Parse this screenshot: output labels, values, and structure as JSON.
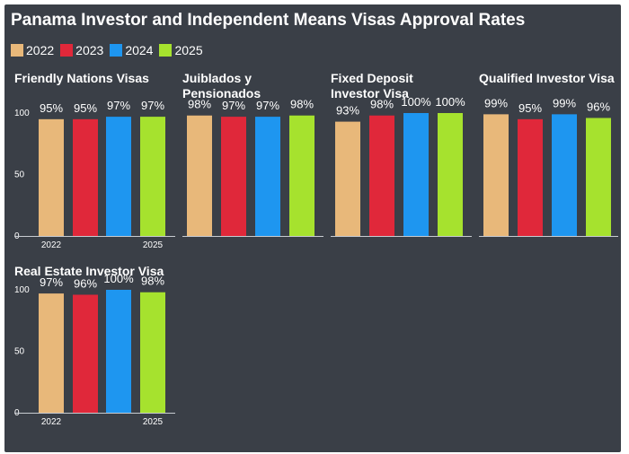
{
  "title": "Panama Investor and Independent Means Visas Approval Rates",
  "legend": [
    {
      "label": "2022",
      "color": "#e8b87a"
    },
    {
      "label": "2023",
      "color": "#e0283a"
    },
    {
      "label": "2024",
      "color": "#1e96f0"
    },
    {
      "label": "2025",
      "color": "#a6e22e"
    }
  ],
  "chart_data": [
    {
      "type": "bar",
      "title": "Friendly Nations Visas",
      "categories": [
        "2022",
        "2023",
        "2024",
        "2025"
      ],
      "values": [
        95,
        95,
        97,
        97
      ],
      "value_labels": [
        "95%",
        "95%",
        "97%",
        "97%"
      ],
      "yticks": [
        "0",
        "50",
        "100"
      ],
      "xticks": [
        "2022",
        "2025"
      ],
      "ylim": [
        0,
        100
      ]
    },
    {
      "type": "bar",
      "title": "Juiblados y Pensionados",
      "categories": [
        "2022",
        "2023",
        "2024",
        "2025"
      ],
      "values": [
        98,
        97,
        97,
        98
      ],
      "value_labels": [
        "98%",
        "97%",
        "97%",
        "98%"
      ],
      "yticks": [],
      "xticks": [],
      "ylim": [
        0,
        100
      ]
    },
    {
      "type": "bar",
      "title": "Fixed Deposit Investor Visa",
      "categories": [
        "2022",
        "2023",
        "2024",
        "2025"
      ],
      "values": [
        93,
        98,
        100,
        100
      ],
      "value_labels": [
        "93%",
        "98%",
        "100%",
        "100%"
      ],
      "yticks": [],
      "xticks": [],
      "ylim": [
        0,
        100
      ]
    },
    {
      "type": "bar",
      "title": "Qualified Investor Visa",
      "categories": [
        "2022",
        "2023",
        "2024",
        "2025"
      ],
      "values": [
        99,
        95,
        99,
        96
      ],
      "value_labels": [
        "99%",
        "95%",
        "99%",
        "96%"
      ],
      "yticks": [],
      "xticks": [],
      "ylim": [
        0,
        100
      ]
    },
    {
      "type": "bar",
      "title": "Real Estate Investor Visa",
      "categories": [
        "2022",
        "2023",
        "2024",
        "2025"
      ],
      "values": [
        97,
        96,
        100,
        98
      ],
      "value_labels": [
        "97%",
        "96%",
        "100%",
        "98%"
      ],
      "yticks": [
        "0",
        "50",
        "100"
      ],
      "xticks": [
        "2022",
        "2025"
      ],
      "ylim": [
        0,
        100
      ]
    }
  ]
}
